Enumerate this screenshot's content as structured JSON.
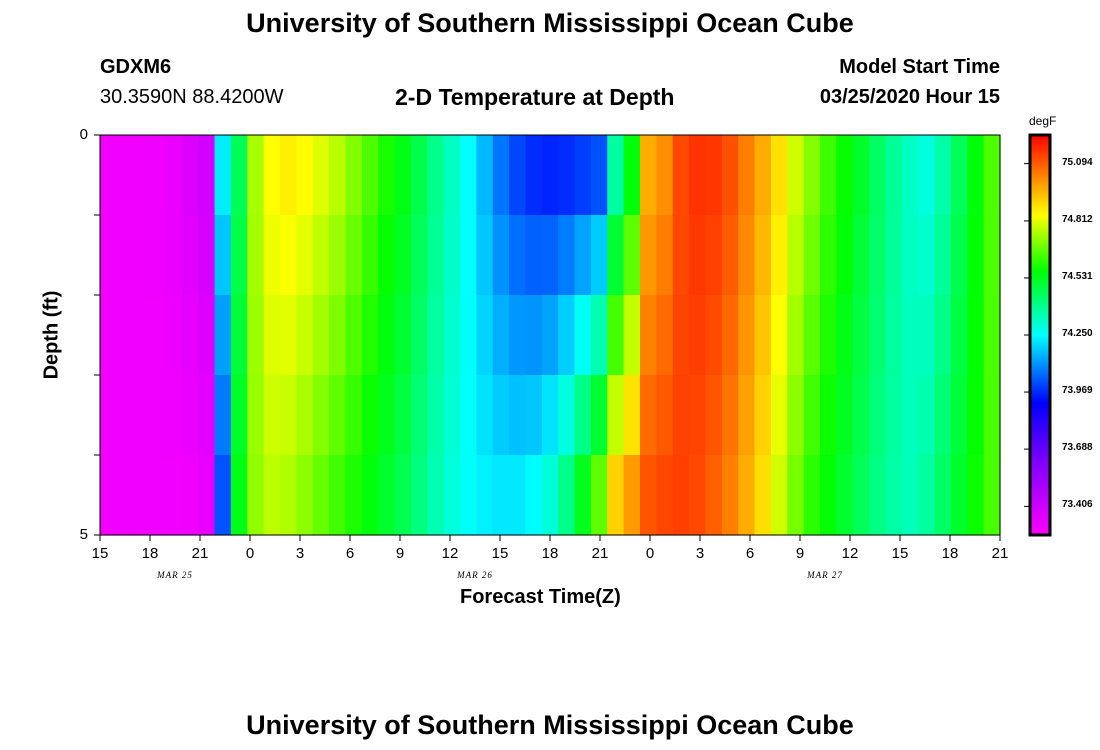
{
  "header": {
    "title": "University of Southern Mississippi Ocean Cube",
    "station": "GDXM6",
    "coords": "30.3590N 88.4200W",
    "plot_title": "2-D Temperature at Depth",
    "model_start_label": "Model Start Time",
    "model_start_value": "03/25/2020 Hour 15"
  },
  "footer": {
    "title": "University of Southern Mississippi Ocean Cube"
  },
  "chart_data": {
    "type": "heatmap",
    "title": "2-D Temperature at Depth",
    "xlabel": "Forecast Time(Z)",
    "ylabel": "Depth (ft)",
    "x_tick_labels": [
      "15",
      "18",
      "21",
      "0",
      "3",
      "6",
      "9",
      "12",
      "15",
      "18",
      "21",
      "0",
      "3",
      "6",
      "9",
      "12",
      "15",
      "18",
      "21"
    ],
    "month_labels": [
      "MAR 25",
      "MAR 26",
      "MAR 27"
    ],
    "y_tick_labels": [
      "0",
      "5"
    ],
    "ylim": [
      0,
      5
    ],
    "depth_levels": [
      0,
      1,
      2,
      3,
      4,
      5
    ],
    "forecast_hours": [
      0,
      1,
      2,
      3,
      4,
      5,
      6,
      7,
      8,
      9,
      10,
      11,
      12,
      13,
      14,
      15,
      16,
      17,
      18,
      19,
      20,
      21,
      22,
      23,
      24,
      25,
      26,
      27,
      28,
      29,
      30,
      31,
      32,
      33,
      34,
      35,
      36,
      37,
      38,
      39,
      40,
      41,
      42,
      43,
      44,
      45,
      46,
      47,
      48,
      49,
      50,
      51,
      52,
      53,
      54
    ],
    "surface_temperature": [
      73.3,
      73.3,
      73.3,
      73.31,
      73.33,
      73.37,
      73.4,
      74.25,
      74.45,
      74.75,
      74.85,
      74.88,
      74.86,
      74.82,
      74.78,
      74.72,
      74.66,
      74.6,
      74.55,
      74.48,
      74.4,
      74.33,
      74.25,
      74.15,
      74.05,
      73.98,
      73.94,
      73.92,
      73.92,
      73.93,
      73.94,
      74.3,
      74.5,
      74.95,
      75.0,
      75.12,
      75.16,
      75.16,
      75.12,
      75.05,
      74.98,
      74.9,
      74.8,
      74.72,
      74.64,
      74.58,
      74.52,
      74.45,
      74.38,
      74.32,
      74.28,
      74.35,
      74.45,
      74.55,
      74.65
    ],
    "bottom_temperature": [
      73.3,
      73.3,
      73.3,
      73.3,
      73.3,
      73.3,
      73.32,
      74.0,
      74.55,
      74.72,
      74.76,
      74.74,
      74.7,
      74.66,
      74.62,
      74.58,
      74.54,
      74.5,
      74.46,
      74.4,
      74.34,
      74.29,
      74.26,
      74.24,
      74.24,
      74.25,
      74.28,
      74.34,
      74.45,
      74.6,
      74.75,
      74.98,
      75.05,
      75.12,
      75.14,
      75.14,
      75.12,
      75.08,
      75.03,
      74.96,
      74.88,
      74.78,
      74.68,
      74.6,
      74.55,
      74.5,
      74.45,
      74.4,
      74.36,
      74.34,
      74.38,
      74.45,
      74.52,
      74.58,
      74.64
    ],
    "colorbar": {
      "unit": "degF",
      "min": 73.265,
      "max": 75.235,
      "ticks": [
        "73.406",
        "73.688",
        "73.969",
        "74.250",
        "74.531",
        "74.812",
        "75.094"
      ]
    }
  }
}
